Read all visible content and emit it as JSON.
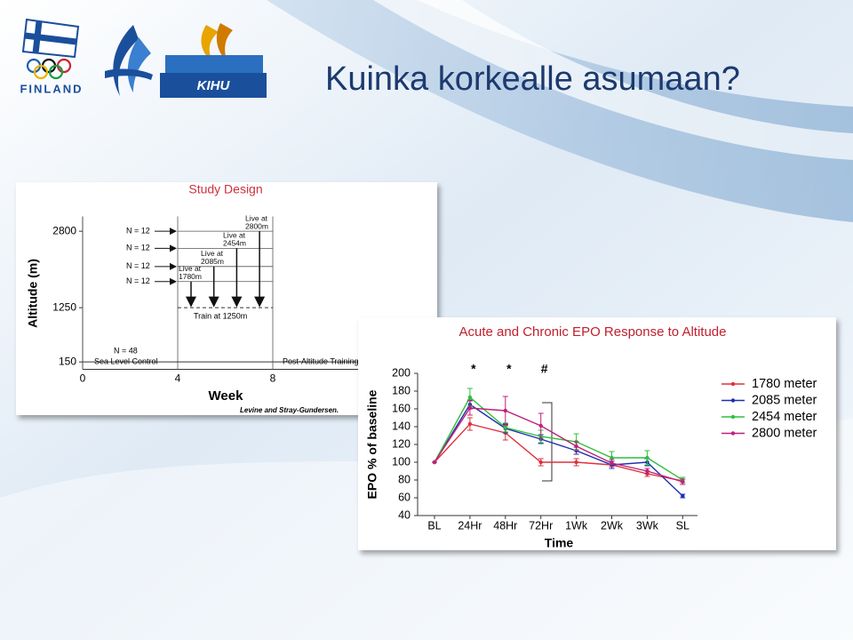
{
  "title": "Kuinka korkealle asumaan?",
  "logos": {
    "finland": "FINLAND",
    "kihu": "KIHU"
  },
  "chart_data": [
    {
      "type": "design",
      "title": "Study Design",
      "xlabel": "Week",
      "ylabel": "Altitude (m)",
      "xlim": [
        0,
        15
      ],
      "xticks": [
        0,
        4,
        8
      ],
      "ylim": [
        0,
        3100
      ],
      "yticks": [
        150,
        1250,
        2800
      ],
      "groups": [
        {
          "n": "N = 12",
          "label": [
            "Live at",
            "1780m"
          ],
          "altitude": 1780
        },
        {
          "n": "N = 12",
          "label": [
            "Live at",
            "2085m"
          ],
          "altitude": 2085
        },
        {
          "n": "N = 12",
          "label": [
            "Live at",
            "2454m"
          ],
          "altitude": 2454
        },
        {
          "n": "N = 12",
          "label": [
            "Live at",
            "2800m"
          ],
          "altitude": 2800
        }
      ],
      "training": {
        "label": "Train at 1250m",
        "altitude": 1250
      },
      "control": {
        "n": "N = 48",
        "label": "Sea Level Control",
        "altitude": 150
      },
      "post_label": "Post-Altitude Training",
      "citation": "Levine and Stray-Gundersen."
    },
    {
      "type": "line",
      "title": "Acute and Chronic EPO Response to Altitude",
      "xlabel": "Time",
      "ylabel": "EPO % of baseline",
      "categories": [
        "BL",
        "24Hr",
        "48Hr",
        "72Hr",
        "1Wk",
        "2Wk",
        "3Wk",
        "SL"
      ],
      "ylim": [
        40,
        200
      ],
      "yticks": [
        40,
        60,
        80,
        100,
        120,
        140,
        160,
        180,
        200
      ],
      "annotations": [
        {
          "text": "*",
          "category": "24Hr"
        },
        {
          "text": "*",
          "category": "48Hr"
        },
        {
          "text": "#",
          "category": "72Hr"
        }
      ],
      "legend": "upper right",
      "series": [
        {
          "name": "1780 meter",
          "color": "#e0303c",
          "values": [
            100,
            143,
            133,
            100,
            100,
            97,
            87,
            79
          ],
          "errors": [
            0,
            7,
            8,
            4,
            4,
            4,
            3,
            4
          ]
        },
        {
          "name": "2085 meter",
          "color": "#1f2fb0",
          "values": [
            100,
            165,
            138,
            126,
            113,
            97,
            100,
            62
          ],
          "errors": [
            0,
            5,
            5,
            5,
            4,
            4,
            4,
            2
          ]
        },
        {
          "name": "2454 meter",
          "color": "#2fc03c",
          "values": [
            100,
            173,
            139,
            129,
            123,
            105,
            105,
            80
          ],
          "errors": [
            0,
            10,
            5,
            7,
            9,
            7,
            8,
            3
          ]
        },
        {
          "name": "2800 meter",
          "color": "#c0207a",
          "values": [
            100,
            161,
            158,
            141,
            118,
            99,
            90,
            78
          ],
          "errors": [
            0,
            8,
            16,
            14,
            5,
            4,
            3,
            3
          ]
        }
      ]
    }
  ]
}
